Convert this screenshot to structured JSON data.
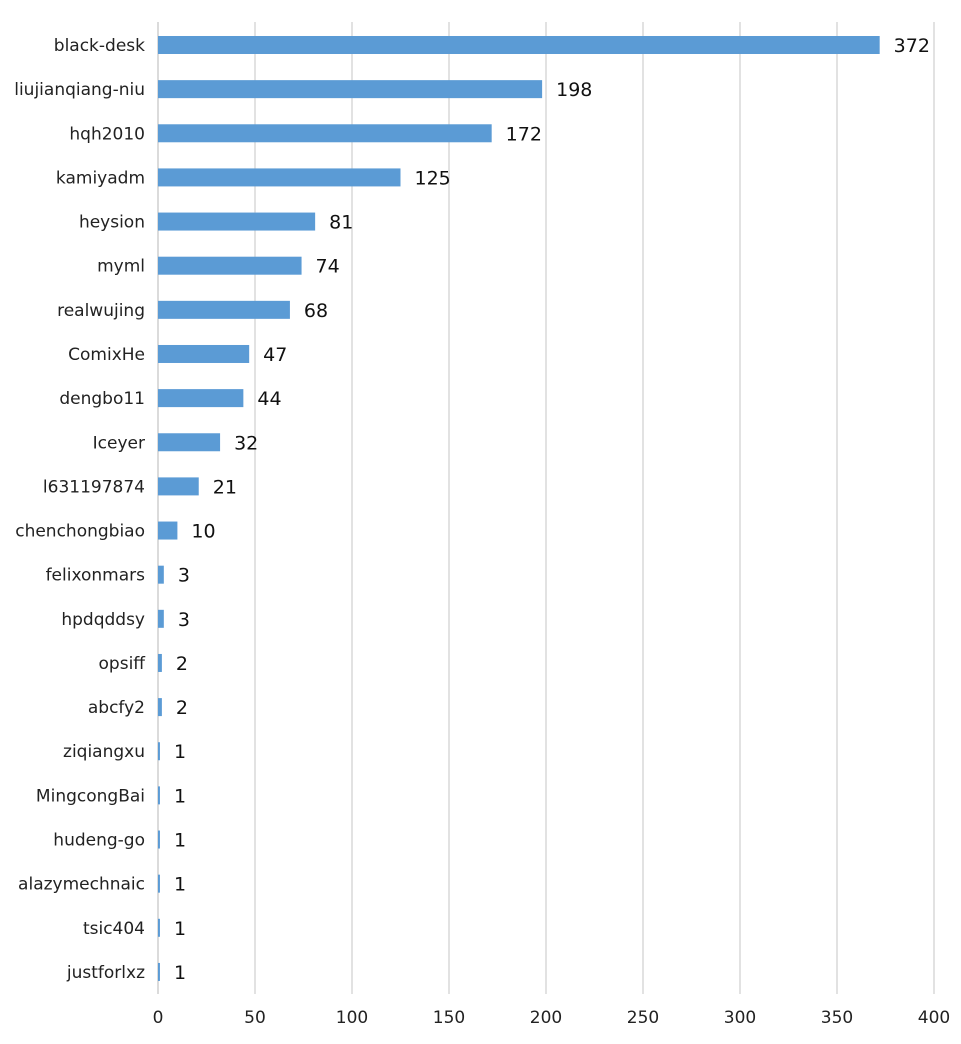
{
  "chart_data": {
    "type": "bar",
    "orientation": "horizontal",
    "categories": [
      "black-desk",
      "liujianqiang-niu",
      "hqh2010",
      "kamiyadm",
      "heysion",
      "myml",
      "realwujing",
      "ComixHe",
      "dengbo11",
      "Iceyer",
      "l631197874",
      "chenchongbiao",
      "felixonmars",
      "hpdqddsy",
      "opsiff",
      "abcfy2",
      "ziqiangxu",
      "MingcongBai",
      "hudeng-go",
      "alazymechnaic",
      "tsic404",
      "justforlxz"
    ],
    "values": [
      372,
      198,
      172,
      125,
      81,
      74,
      68,
      47,
      44,
      32,
      21,
      10,
      3,
      3,
      2,
      2,
      1,
      1,
      1,
      1,
      1,
      1
    ],
    "title": "",
    "xlabel": "",
    "ylabel": "",
    "xlim": [
      0,
      400
    ],
    "xticks": [
      0,
      50,
      100,
      150,
      200,
      250,
      300,
      350,
      400
    ],
    "grid": "vertical",
    "legend": "none",
    "bar_color": "#5b9bd5",
    "data_labels": true
  }
}
